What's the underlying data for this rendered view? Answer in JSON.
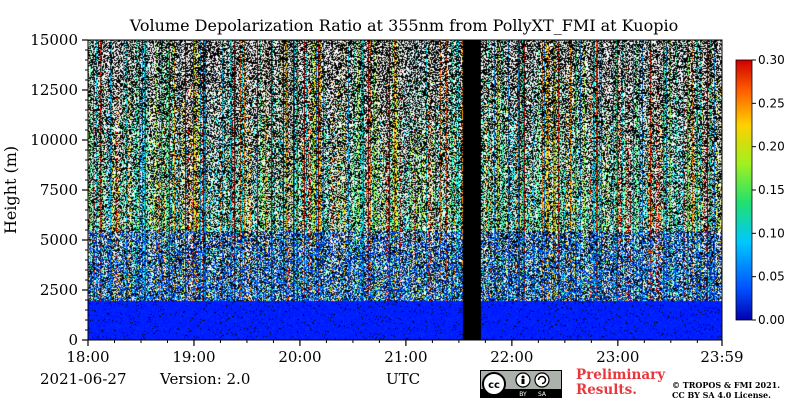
{
  "title": "Volume Depolarization Ratio at 355nm from PollyXT_FMI at Kuopio",
  "footer": {
    "date": "2021-06-27",
    "version": "Version: 2.0",
    "timezone": "UTC",
    "preliminary_line1": "Preliminary",
    "preliminary_line2": "Results.",
    "copyright_line1": "© TROPOS & FMI 2021.",
    "copyright_line2": "CC BY SA 4.0 License.",
    "badge_cc": "cc",
    "badge_by": "BY",
    "badge_sa": "SA"
  },
  "chart_data": {
    "type": "heatmap",
    "title": "Volume Depolarization Ratio at 355nm from PollyXT_FMI at Kuopio",
    "xlabel": "",
    "ylabel": "Height (m)",
    "x_ticks": [
      "18:00",
      "19:00",
      "20:00",
      "21:00",
      "22:00",
      "23:00",
      "23:59"
    ],
    "x_range_hours": [
      18.0,
      23.983
    ],
    "y_ticks": [
      0,
      2500,
      5000,
      7500,
      10000,
      12500,
      15000
    ],
    "ylim": [
      0,
      15000
    ],
    "colorbar": {
      "range": [
        0.0,
        0.3
      ],
      "ticks": [
        "0.00",
        "0.05",
        "0.10",
        "0.15",
        "0.20",
        "0.25",
        "0.30"
      ],
      "colormap": "jet"
    },
    "no_data_interval_hours": [
      21.53,
      21.7
    ],
    "no_data_color": "#000000",
    "low_altitude_signal": {
      "top_m": 2500,
      "typical_value": 0.01
    },
    "grid": false
  }
}
